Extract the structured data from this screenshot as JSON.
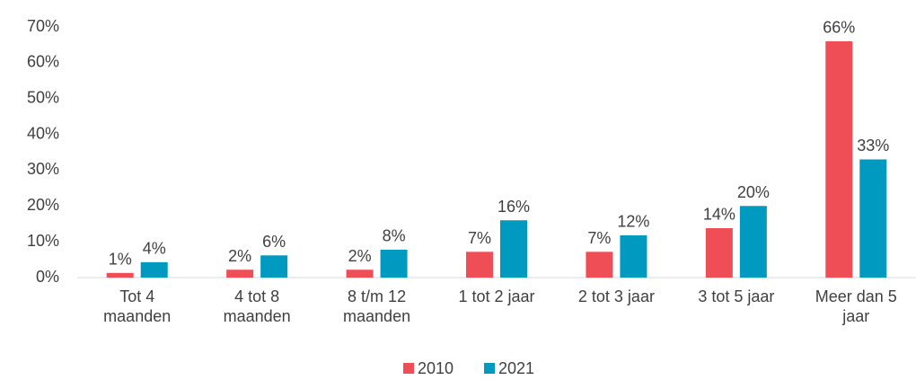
{
  "chart_data": {
    "type": "bar",
    "categories": [
      "Tot 4 maanden",
      "4 tot 8 maanden",
      "8 t/m 12 maanden",
      "1 tot 2 jaar",
      "2 tot 3 jaar",
      "3 tot 5 jaar",
      "Meer dan 5 jaar"
    ],
    "series": [
      {
        "name": "2010",
        "color": "#f04e56",
        "values": [
          1.3,
          2.2,
          2.2,
          7.2,
          7.2,
          13.8,
          66
        ],
        "value_labels": [
          "1%",
          "2%",
          "2%",
          "7%",
          "7%",
          "14%",
          "66%"
        ]
      },
      {
        "name": "2021",
        "color": "#0099bf",
        "values": [
          4.3,
          6.2,
          7.8,
          16,
          11.8,
          20,
          33
        ],
        "value_labels": [
          "4%",
          "6%",
          "8%",
          "16%",
          "12%",
          "20%",
          "33%"
        ]
      }
    ],
    "ylim": [
      0,
      70
    ],
    "yticks": [
      {
        "value": 0,
        "label": "0%"
      },
      {
        "value": 10,
        "label": "10%"
      },
      {
        "value": 20,
        "label": "20%"
      },
      {
        "value": 30,
        "label": "30%"
      },
      {
        "value": 40,
        "label": "40%"
      },
      {
        "value": 50,
        "label": "50%"
      },
      {
        "value": 60,
        "label": "60%"
      },
      {
        "value": 70,
        "label": "70%"
      }
    ],
    "grid": false,
    "legend": "bottom"
  }
}
